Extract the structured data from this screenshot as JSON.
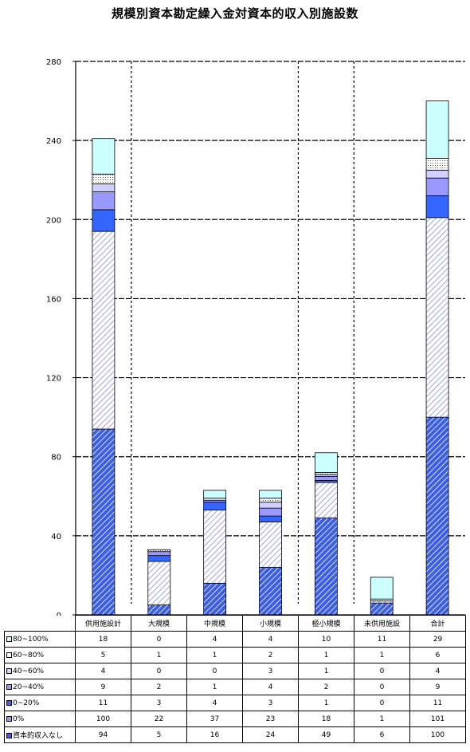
{
  "chart_data": {
    "type": "bar",
    "stacked": true,
    "title": "規模別資本勘定繰入金対資本的収入別施設数",
    "categories": [
      "供用施設計",
      "大規模",
      "中規模",
      "小規模",
      "極小規模",
      "未供用施設",
      "合計"
    ],
    "ylim": [
      0,
      280
    ],
    "yticks": [
      0,
      40,
      80,
      120,
      160,
      200,
      240,
      280
    ],
    "grid": true,
    "series": [
      {
        "name": "資本的収入なし",
        "values": [
          94,
          5,
          16,
          24,
          49,
          6,
          100
        ],
        "color": "#3c5ee6",
        "pattern": "dense-hatch"
      },
      {
        "name": "0%",
        "values": [
          100,
          22,
          37,
          23,
          18,
          1,
          101
        ],
        "color": "#9a9ae6",
        "pattern": "light-hatch"
      },
      {
        "name": "0~20%",
        "values": [
          11,
          3,
          4,
          3,
          1,
          0,
          11
        ],
        "color": "#3366ff",
        "pattern": "solid"
      },
      {
        "name": "20~40%",
        "values": [
          9,
          2,
          1,
          4,
          2,
          0,
          9
        ],
        "color": "#9999ff",
        "pattern": "solid"
      },
      {
        "name": "40~60%",
        "values": [
          4,
          0,
          0,
          3,
          1,
          0,
          4
        ],
        "color": "#d0d0ff",
        "pattern": "solid"
      },
      {
        "name": "60~80%",
        "values": [
          5,
          1,
          1,
          2,
          1,
          1,
          6
        ],
        "color": "#ffffff",
        "pattern": "dots"
      },
      {
        "name": "80~100%",
        "values": [
          18,
          0,
          4,
          4,
          10,
          11,
          29
        ],
        "color": "#ccffff",
        "pattern": "solid"
      }
    ]
  },
  "table": {
    "headers": [
      "供用施設計",
      "大規模",
      "中規模",
      "小規模",
      "極小規模",
      "未供用施設",
      "合計"
    ],
    "rows": [
      {
        "label": "80~100%",
        "color": "#ccffff",
        "values": [
          "18",
          "0",
          "4",
          "4",
          "10",
          "11",
          "29"
        ]
      },
      {
        "label": "60~80%",
        "color": "#ffffff",
        "values": [
          "5",
          "1",
          "1",
          "2",
          "1",
          "1",
          "6"
        ]
      },
      {
        "label": "40~60%",
        "color": "#d0d0ff",
        "values": [
          "4",
          "0",
          "0",
          "3",
          "1",
          "0",
          "4"
        ]
      },
      {
        "label": "20~40%",
        "color": "#9999ff",
        "values": [
          "9",
          "2",
          "1",
          "4",
          "2",
          "0",
          "9"
        ]
      },
      {
        "label": "0~20%",
        "color": "#3366ff",
        "values": [
          "11",
          "3",
          "4",
          "3",
          "1",
          "0",
          "11"
        ]
      },
      {
        "label": "0%",
        "color": "#9a9ae6",
        "values": [
          "100",
          "22",
          "37",
          "23",
          "18",
          "1",
          "101"
        ]
      },
      {
        "label": "資本的収入なし",
        "color": "#3c5ee6",
        "values": [
          "94",
          "5",
          "16",
          "24",
          "49",
          "6",
          "100"
        ]
      }
    ]
  }
}
